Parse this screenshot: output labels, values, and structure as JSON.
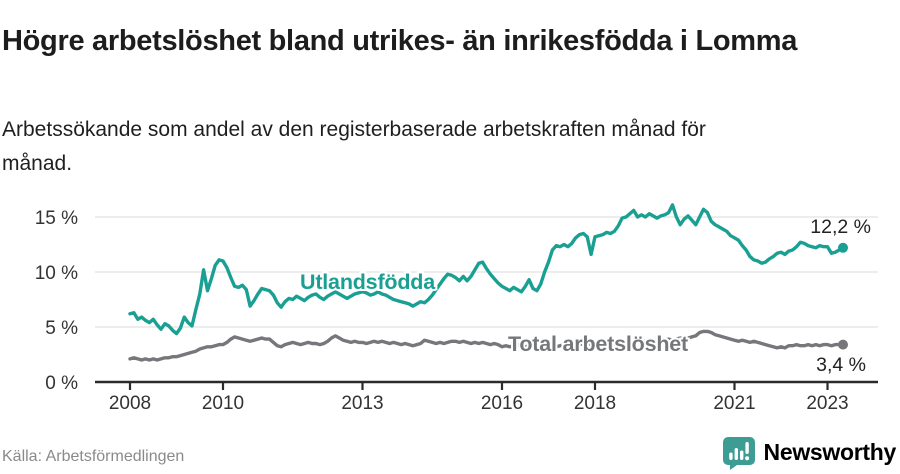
{
  "header": {
    "title": "Högre arbetslöshet bland utrikes- än inrikesfödda i Lomma",
    "subtitle": "Arbetssökande som andel av den registerbaserade arbetskraften månad för månad."
  },
  "footer": {
    "source": "Källa: Arbetsförmedlingen",
    "brand": "Newsworthy"
  },
  "colors": {
    "accent_teal": "#1aa093",
    "series_gray": "#76777a",
    "grid": "#e2e2e2",
    "axis": "#2b2b2b",
    "tick_label": "#333333",
    "end_label": "#222222",
    "brand_teal": "#2f9e94"
  },
  "chart_data": {
    "type": "line",
    "title": "Högre arbetslöshet bland utrikes- än inrikesfödda i Lomma",
    "subtitle": "Arbetssökande som andel av den registerbaserade arbetskraften månad för månad.",
    "source": "Källa: Arbetsförmedlingen",
    "x_start_year": 2008,
    "x_months_per_step": 1,
    "xticks": [
      2008,
      2010,
      2013,
      2016,
      2018,
      2021,
      2023
    ],
    "xtick_labels": [
      "2008",
      "2010",
      "2013",
      "2016",
      "2018",
      "2021",
      "2023"
    ],
    "yticks": [
      0,
      5,
      10,
      15
    ],
    "ytick_labels": [
      "0 %",
      "5 %",
      "10 %",
      "15 %"
    ],
    "ylim": [
      0,
      16.5
    ],
    "grid": "horizontal",
    "legend_position": "inline-labels",
    "series": [
      {
        "name": "Utlandsfödda",
        "color": "#1aa093",
        "end_label": "12,2 %",
        "end_value": 12.2,
        "values": [
          6.2,
          6.3,
          5.7,
          5.9,
          5.6,
          5.4,
          5.7,
          5.2,
          4.8,
          5.3,
          5.1,
          4.7,
          4.4,
          4.9,
          5.9,
          5.4,
          5.1,
          6.6,
          8.0,
          10.2,
          8.3,
          9.4,
          10.6,
          11.1,
          11.0,
          10.4,
          9.5,
          8.7,
          8.6,
          8.8,
          8.4,
          6.9,
          7.4,
          8.0,
          8.5,
          8.4,
          8.3,
          7.9,
          7.2,
          6.8,
          7.3,
          7.6,
          7.5,
          7.8,
          7.6,
          7.4,
          7.7,
          7.9,
          8.0,
          7.7,
          7.5,
          7.8,
          8.0,
          8.2,
          8.0,
          7.8,
          7.6,
          7.8,
          8.0,
          8.1,
          8.2,
          8.1,
          7.9,
          8.0,
          8.2,
          8.0,
          7.9,
          7.7,
          7.5,
          7.4,
          7.3,
          7.2,
          7.1,
          6.9,
          7.1,
          7.3,
          7.2,
          7.5,
          7.9,
          8.4,
          8.9,
          9.4,
          9.8,
          9.7,
          9.5,
          9.2,
          9.6,
          9.2,
          9.6,
          10.2,
          10.8,
          10.9,
          10.3,
          9.8,
          9.4,
          9.0,
          8.7,
          8.5,
          8.3,
          8.6,
          8.4,
          8.2,
          8.7,
          9.3,
          8.5,
          8.3,
          8.9,
          10.0,
          10.9,
          12.0,
          12.4,
          12.3,
          12.5,
          12.3,
          12.6,
          13.1,
          13.4,
          13.5,
          13.2,
          11.6,
          13.2,
          13.3,
          13.4,
          13.6,
          13.5,
          13.7,
          14.2,
          14.9,
          15.0,
          15.3,
          15.6,
          15.0,
          15.2,
          15.0,
          15.3,
          15.1,
          14.9,
          15.1,
          15.2,
          15.4,
          16.1,
          15.0,
          14.3,
          14.8,
          15.1,
          14.7,
          14.3,
          15.0,
          15.7,
          15.4,
          14.6,
          14.3,
          14.1,
          13.9,
          13.7,
          13.3,
          13.1,
          12.9,
          12.4,
          12.0,
          11.4,
          11.1,
          11.0,
          10.8,
          10.9,
          11.2,
          11.4,
          11.7,
          11.8,
          11.6,
          11.9,
          12.0,
          12.3,
          12.7,
          12.6,
          12.4,
          12.3,
          12.2,
          12.4,
          12.3,
          12.3,
          11.7,
          11.8,
          12.0,
          12.2
        ]
      },
      {
        "name": "Total arbetslöshet",
        "color": "#76777a",
        "end_label": "3,4 %",
        "end_value": 3.4,
        "values": [
          2.1,
          2.2,
          2.1,
          2.0,
          2.1,
          2.0,
          2.1,
          2.0,
          2.1,
          2.2,
          2.2,
          2.3,
          2.3,
          2.4,
          2.5,
          2.6,
          2.7,
          2.8,
          3.0,
          3.1,
          3.2,
          3.2,
          3.3,
          3.4,
          3.4,
          3.6,
          3.9,
          4.1,
          4.0,
          3.9,
          3.8,
          3.7,
          3.8,
          3.9,
          4.0,
          3.9,
          3.9,
          3.6,
          3.3,
          3.2,
          3.4,
          3.5,
          3.6,
          3.5,
          3.4,
          3.5,
          3.6,
          3.5,
          3.5,
          3.4,
          3.5,
          3.7,
          4.0,
          4.2,
          4.0,
          3.8,
          3.7,
          3.6,
          3.7,
          3.6,
          3.6,
          3.5,
          3.6,
          3.7,
          3.6,
          3.7,
          3.6,
          3.5,
          3.6,
          3.5,
          3.4,
          3.5,
          3.4,
          3.3,
          3.4,
          3.5,
          3.8,
          3.7,
          3.6,
          3.5,
          3.6,
          3.5,
          3.6,
          3.7,
          3.7,
          3.6,
          3.7,
          3.6,
          3.5,
          3.6,
          3.5,
          3.6,
          3.5,
          3.4,
          3.5,
          3.4,
          3.2,
          3.3,
          3.2,
          3.3,
          3.4,
          3.3,
          3.2,
          3.3,
          3.2,
          3.1,
          3.2,
          3.3,
          3.2,
          3.3,
          3.2,
          3.3,
          3.4,
          3.3,
          3.4,
          3.3,
          3.4,
          3.5,
          3.4,
          3.5,
          3.4,
          3.5,
          3.4,
          3.5,
          3.6,
          3.5,
          3.6,
          3.5,
          3.6,
          3.7,
          3.6,
          3.7,
          3.6,
          3.7,
          3.6,
          3.7,
          3.8,
          3.7,
          3.8,
          3.9,
          3.8,
          3.9,
          4.0,
          3.9,
          4.0,
          4.1,
          4.2,
          4.5,
          4.6,
          4.6,
          4.5,
          4.3,
          4.2,
          4.1,
          4.0,
          3.9,
          3.8,
          3.7,
          3.8,
          3.7,
          3.6,
          3.7,
          3.6,
          3.5,
          3.4,
          3.3,
          3.2,
          3.1,
          3.2,
          3.1,
          3.3,
          3.3,
          3.4,
          3.3,
          3.3,
          3.4,
          3.3,
          3.4,
          3.3,
          3.4,
          3.4,
          3.3,
          3.4,
          3.4,
          3.4
        ]
      }
    ]
  }
}
